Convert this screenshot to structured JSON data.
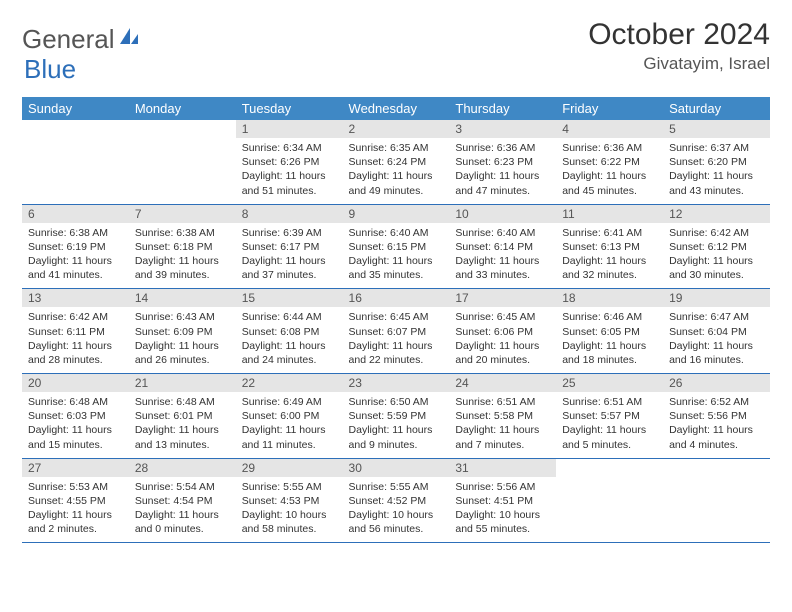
{
  "brand": {
    "part1": "General",
    "part2": "Blue"
  },
  "title": "October 2024",
  "location": "Givatayim, Israel",
  "colors": {
    "header_bg": "#3f88c5",
    "header_text": "#ffffff",
    "daynum_bg": "#e5e5e5",
    "border": "#2d6fb9",
    "brand_blue": "#2d6fb9"
  },
  "dow": [
    "Sunday",
    "Monday",
    "Tuesday",
    "Wednesday",
    "Thursday",
    "Friday",
    "Saturday"
  ],
  "weeks": [
    [
      {
        "n": "",
        "sr": "",
        "ss": "",
        "dl": ""
      },
      {
        "n": "",
        "sr": "",
        "ss": "",
        "dl": ""
      },
      {
        "n": "1",
        "sr": "Sunrise: 6:34 AM",
        "ss": "Sunset: 6:26 PM",
        "dl": "Daylight: 11 hours and 51 minutes."
      },
      {
        "n": "2",
        "sr": "Sunrise: 6:35 AM",
        "ss": "Sunset: 6:24 PM",
        "dl": "Daylight: 11 hours and 49 minutes."
      },
      {
        "n": "3",
        "sr": "Sunrise: 6:36 AM",
        "ss": "Sunset: 6:23 PM",
        "dl": "Daylight: 11 hours and 47 minutes."
      },
      {
        "n": "4",
        "sr": "Sunrise: 6:36 AM",
        "ss": "Sunset: 6:22 PM",
        "dl": "Daylight: 11 hours and 45 minutes."
      },
      {
        "n": "5",
        "sr": "Sunrise: 6:37 AM",
        "ss": "Sunset: 6:20 PM",
        "dl": "Daylight: 11 hours and 43 minutes."
      }
    ],
    [
      {
        "n": "6",
        "sr": "Sunrise: 6:38 AM",
        "ss": "Sunset: 6:19 PM",
        "dl": "Daylight: 11 hours and 41 minutes."
      },
      {
        "n": "7",
        "sr": "Sunrise: 6:38 AM",
        "ss": "Sunset: 6:18 PM",
        "dl": "Daylight: 11 hours and 39 minutes."
      },
      {
        "n": "8",
        "sr": "Sunrise: 6:39 AM",
        "ss": "Sunset: 6:17 PM",
        "dl": "Daylight: 11 hours and 37 minutes."
      },
      {
        "n": "9",
        "sr": "Sunrise: 6:40 AM",
        "ss": "Sunset: 6:15 PM",
        "dl": "Daylight: 11 hours and 35 minutes."
      },
      {
        "n": "10",
        "sr": "Sunrise: 6:40 AM",
        "ss": "Sunset: 6:14 PM",
        "dl": "Daylight: 11 hours and 33 minutes."
      },
      {
        "n": "11",
        "sr": "Sunrise: 6:41 AM",
        "ss": "Sunset: 6:13 PM",
        "dl": "Daylight: 11 hours and 32 minutes."
      },
      {
        "n": "12",
        "sr": "Sunrise: 6:42 AM",
        "ss": "Sunset: 6:12 PM",
        "dl": "Daylight: 11 hours and 30 minutes."
      }
    ],
    [
      {
        "n": "13",
        "sr": "Sunrise: 6:42 AM",
        "ss": "Sunset: 6:11 PM",
        "dl": "Daylight: 11 hours and 28 minutes."
      },
      {
        "n": "14",
        "sr": "Sunrise: 6:43 AM",
        "ss": "Sunset: 6:09 PM",
        "dl": "Daylight: 11 hours and 26 minutes."
      },
      {
        "n": "15",
        "sr": "Sunrise: 6:44 AM",
        "ss": "Sunset: 6:08 PM",
        "dl": "Daylight: 11 hours and 24 minutes."
      },
      {
        "n": "16",
        "sr": "Sunrise: 6:45 AM",
        "ss": "Sunset: 6:07 PM",
        "dl": "Daylight: 11 hours and 22 minutes."
      },
      {
        "n": "17",
        "sr": "Sunrise: 6:45 AM",
        "ss": "Sunset: 6:06 PM",
        "dl": "Daylight: 11 hours and 20 minutes."
      },
      {
        "n": "18",
        "sr": "Sunrise: 6:46 AM",
        "ss": "Sunset: 6:05 PM",
        "dl": "Daylight: 11 hours and 18 minutes."
      },
      {
        "n": "19",
        "sr": "Sunrise: 6:47 AM",
        "ss": "Sunset: 6:04 PM",
        "dl": "Daylight: 11 hours and 16 minutes."
      }
    ],
    [
      {
        "n": "20",
        "sr": "Sunrise: 6:48 AM",
        "ss": "Sunset: 6:03 PM",
        "dl": "Daylight: 11 hours and 15 minutes."
      },
      {
        "n": "21",
        "sr": "Sunrise: 6:48 AM",
        "ss": "Sunset: 6:01 PM",
        "dl": "Daylight: 11 hours and 13 minutes."
      },
      {
        "n": "22",
        "sr": "Sunrise: 6:49 AM",
        "ss": "Sunset: 6:00 PM",
        "dl": "Daylight: 11 hours and 11 minutes."
      },
      {
        "n": "23",
        "sr": "Sunrise: 6:50 AM",
        "ss": "Sunset: 5:59 PM",
        "dl": "Daylight: 11 hours and 9 minutes."
      },
      {
        "n": "24",
        "sr": "Sunrise: 6:51 AM",
        "ss": "Sunset: 5:58 PM",
        "dl": "Daylight: 11 hours and 7 minutes."
      },
      {
        "n": "25",
        "sr": "Sunrise: 6:51 AM",
        "ss": "Sunset: 5:57 PM",
        "dl": "Daylight: 11 hours and 5 minutes."
      },
      {
        "n": "26",
        "sr": "Sunrise: 6:52 AM",
        "ss": "Sunset: 5:56 PM",
        "dl": "Daylight: 11 hours and 4 minutes."
      }
    ],
    [
      {
        "n": "27",
        "sr": "Sunrise: 5:53 AM",
        "ss": "Sunset: 4:55 PM",
        "dl": "Daylight: 11 hours and 2 minutes."
      },
      {
        "n": "28",
        "sr": "Sunrise: 5:54 AM",
        "ss": "Sunset: 4:54 PM",
        "dl": "Daylight: 11 hours and 0 minutes."
      },
      {
        "n": "29",
        "sr": "Sunrise: 5:55 AM",
        "ss": "Sunset: 4:53 PM",
        "dl": "Daylight: 10 hours and 58 minutes."
      },
      {
        "n": "30",
        "sr": "Sunrise: 5:55 AM",
        "ss": "Sunset: 4:52 PM",
        "dl": "Daylight: 10 hours and 56 minutes."
      },
      {
        "n": "31",
        "sr": "Sunrise: 5:56 AM",
        "ss": "Sunset: 4:51 PM",
        "dl": "Daylight: 10 hours and 55 minutes."
      },
      {
        "n": "",
        "sr": "",
        "ss": "",
        "dl": ""
      },
      {
        "n": "",
        "sr": "",
        "ss": "",
        "dl": ""
      }
    ]
  ]
}
